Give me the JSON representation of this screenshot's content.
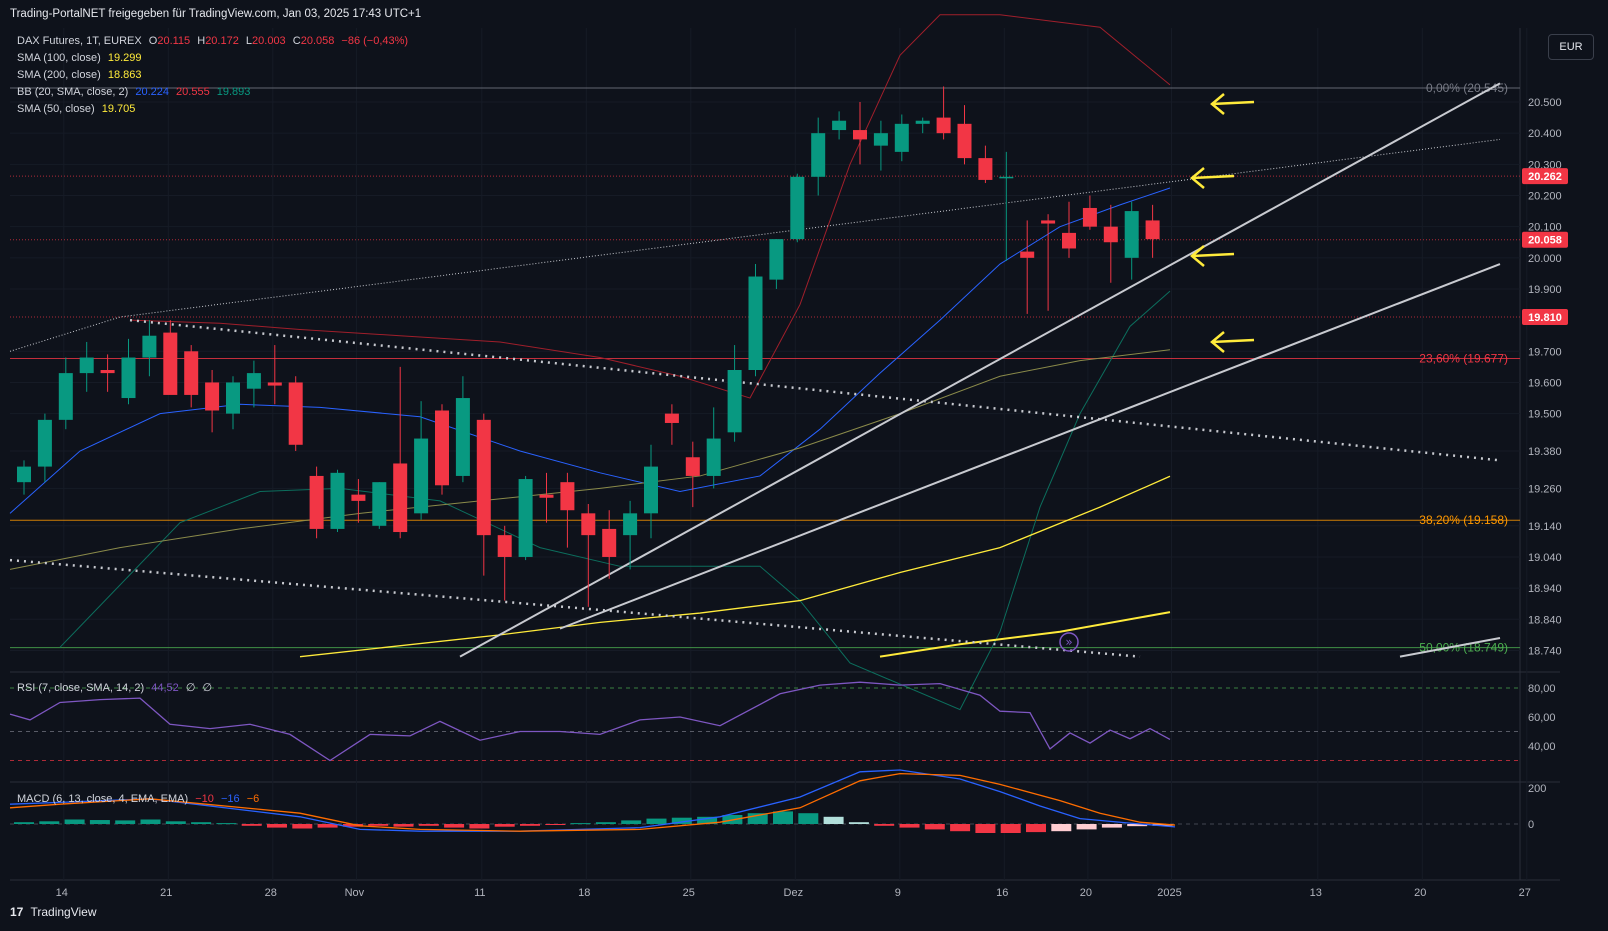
{
  "header": {
    "title": "Trading-PortalNET freigegeben für TradingView.com, Jan 03, 2025 17:43 UTC+1"
  },
  "footer": {
    "brand": "TradingView",
    "logo": "17"
  },
  "currency_button": "EUR",
  "legend": {
    "symbol": "DAX Futures, 1T, EUREX",
    "o": "O",
    "o_val": "20.115",
    "h": "H",
    "h_val": "20.172",
    "l": "L",
    "l_val": "20.003",
    "c": "C",
    "c_val": "20.058",
    "chg": "−86 (−0,43%)",
    "sma100": "SMA (100, close)",
    "sma100_val": "19.299",
    "sma200": "SMA (200, close)",
    "sma200_val": "18.863",
    "bb": "BB (20, SMA, close, 2)",
    "bb_mid": "20.224",
    "bb_up": "20.555",
    "bb_lo": "19.893",
    "sma50": "SMA (50, close)",
    "sma50_val": "19.705",
    "rsi": "RSI (7, close, SMA, 14, 2)",
    "rsi_val": "44,52",
    "rsi_na1": "∅",
    "rsi_na2": "∅",
    "macd": "MACD (6, 13, close, 4, EMA, EMA)",
    "macd_h": "−10",
    "macd_m": "−16",
    "macd_s": "−6"
  },
  "colors": {
    "bg": "#0e121b",
    "up": "#089981",
    "down": "#f23645",
    "sma100": "#ffeb3b",
    "sma200": "#ffeb3b",
    "sma50": "#8b8b4a",
    "bb_mid": "#2962ff",
    "bb_up": "#a01f2b",
    "bb_lo": "#0c6e5d",
    "rsi": "#7e57c2",
    "macd": "#2962ff",
    "signal": "#ff6d00",
    "arrow": "#ffeb3b"
  },
  "chart_data": {
    "type": "candlestick",
    "x_ticks": [
      {
        "label": "14",
        "i": 2
      },
      {
        "label": "21",
        "i": 7
      },
      {
        "label": "28",
        "i": 12
      },
      {
        "label": "Nov",
        "i": 16
      },
      {
        "label": "11",
        "i": 22
      },
      {
        "label": "18",
        "i": 27
      },
      {
        "label": "25",
        "i": 32
      },
      {
        "label": "Dez",
        "i": 37
      },
      {
        "label": "9",
        "i": 42
      },
      {
        "label": "16",
        "i": 47
      },
      {
        "label": "20",
        "i": 51
      },
      {
        "label": "2025",
        "i": 55
      },
      {
        "label": "13",
        "i": 62
      },
      {
        "label": "20",
        "i": 67
      },
      {
        "label": "27",
        "i": 72
      }
    ],
    "y_ticks": [
      "20.500",
      "20.400",
      "20.300",
      "20.200",
      "20.100",
      "20.000",
      "19.900",
      "19.700",
      "19.600",
      "19.500",
      "19.380",
      "19.260",
      "19.140",
      "19.040",
      "18.940",
      "18.840",
      "18.740"
    ],
    "ylim": [
      18.72,
      20.74
    ],
    "price_labels": [
      {
        "label": "20.262",
        "value": 20.262,
        "color": "#f23645"
      },
      {
        "label": "20.058",
        "value": 20.058,
        "color": "#f23645"
      },
      {
        "label": "19.810",
        "value": 19.81,
        "color": "#f23645"
      }
    ],
    "fib_levels": [
      {
        "label": "0,00% (20.545)",
        "value": 20.545,
        "color": "#787b86"
      },
      {
        "label": "23,60% (19.677)",
        "value": 19.677,
        "color": "#f23645"
      },
      {
        "label": "38,20% (19.158)",
        "value": 19.158,
        "color": "#ff9800"
      },
      {
        "label": "50,00% (18.749)",
        "value": 18.749,
        "color": "#4caf50"
      }
    ],
    "candles": [
      [
        19.28,
        19.35,
        19.24,
        19.33
      ],
      [
        19.33,
        19.5,
        19.28,
        19.48
      ],
      [
        19.48,
        19.68,
        19.45,
        19.63
      ],
      [
        19.63,
        19.73,
        19.57,
        19.68
      ],
      [
        19.64,
        19.69,
        19.57,
        19.63
      ],
      [
        19.55,
        19.74,
        19.53,
        19.68
      ],
      [
        19.68,
        19.8,
        19.62,
        19.75
      ],
      [
        19.76,
        19.8,
        19.58,
        19.56
      ],
      [
        19.7,
        19.72,
        19.52,
        19.56
      ],
      [
        19.6,
        19.64,
        19.44,
        19.51
      ],
      [
        19.5,
        19.62,
        19.45,
        19.6
      ],
      [
        19.58,
        19.67,
        19.52,
        19.63
      ],
      [
        19.6,
        19.72,
        19.53,
        19.59
      ],
      [
        19.6,
        19.62,
        19.38,
        19.4
      ],
      [
        19.3,
        19.33,
        19.1,
        19.13
      ],
      [
        19.13,
        19.32,
        19.12,
        19.31
      ],
      [
        19.24,
        19.29,
        19.15,
        19.22
      ],
      [
        19.14,
        19.28,
        19.13,
        19.28
      ],
      [
        19.34,
        19.65,
        19.1,
        19.12
      ],
      [
        19.18,
        19.54,
        19.16,
        19.42
      ],
      [
        19.51,
        19.53,
        19.24,
        19.27
      ],
      [
        19.3,
        19.62,
        19.28,
        19.55
      ],
      [
        19.48,
        19.5,
        18.98,
        19.11
      ],
      [
        19.11,
        19.14,
        18.9,
        19.04
      ],
      [
        19.04,
        19.3,
        19.03,
        19.29
      ],
      [
        19.24,
        19.31,
        19.15,
        19.23
      ],
      [
        19.28,
        19.31,
        19.07,
        19.19
      ],
      [
        19.18,
        19.21,
        18.88,
        19.11
      ],
      [
        19.13,
        19.19,
        18.97,
        19.04
      ],
      [
        19.11,
        19.22,
        19.0,
        19.18
      ],
      [
        19.18,
        19.4,
        19.1,
        19.33
      ],
      [
        19.5,
        19.53,
        19.4,
        19.47
      ],
      [
        19.36,
        19.41,
        19.2,
        19.3
      ],
      [
        19.3,
        19.52,
        19.26,
        19.42
      ],
      [
        19.44,
        19.72,
        19.41,
        19.64
      ],
      [
        19.64,
        19.98,
        19.62,
        19.94
      ],
      [
        19.93,
        20.06,
        19.9,
        20.06
      ],
      [
        20.06,
        20.27,
        20.05,
        20.26
      ],
      [
        20.26,
        20.45,
        20.2,
        20.4
      ],
      [
        20.41,
        20.47,
        20.38,
        20.44
      ],
      [
        20.41,
        20.5,
        20.3,
        20.38
      ],
      [
        20.36,
        20.44,
        20.28,
        20.4
      ],
      [
        20.34,
        20.46,
        20.31,
        20.43
      ],
      [
        20.43,
        20.45,
        20.4,
        20.44
      ],
      [
        20.45,
        20.55,
        20.38,
        20.4
      ],
      [
        20.43,
        20.49,
        20.3,
        20.32
      ],
      [
        20.32,
        20.36,
        20.24,
        20.25
      ],
      [
        20.26,
        20.34,
        19.99,
        20.26
      ],
      [
        20.02,
        20.12,
        19.82,
        20.0
      ],
      [
        20.12,
        20.14,
        19.83,
        20.11
      ],
      [
        20.08,
        20.18,
        20.0,
        20.03
      ],
      [
        20.16,
        20.2,
        20.09,
        20.1
      ],
      [
        20.1,
        20.17,
        19.92,
        20.05
      ],
      [
        20.0,
        20.18,
        19.93,
        20.15
      ],
      [
        20.12,
        20.17,
        20.0,
        20.06
      ]
    ],
    "rsi_ticks": [
      "80,00",
      "60,00",
      "40,00"
    ],
    "macd_ticks": [
      "200",
      "0"
    ]
  }
}
